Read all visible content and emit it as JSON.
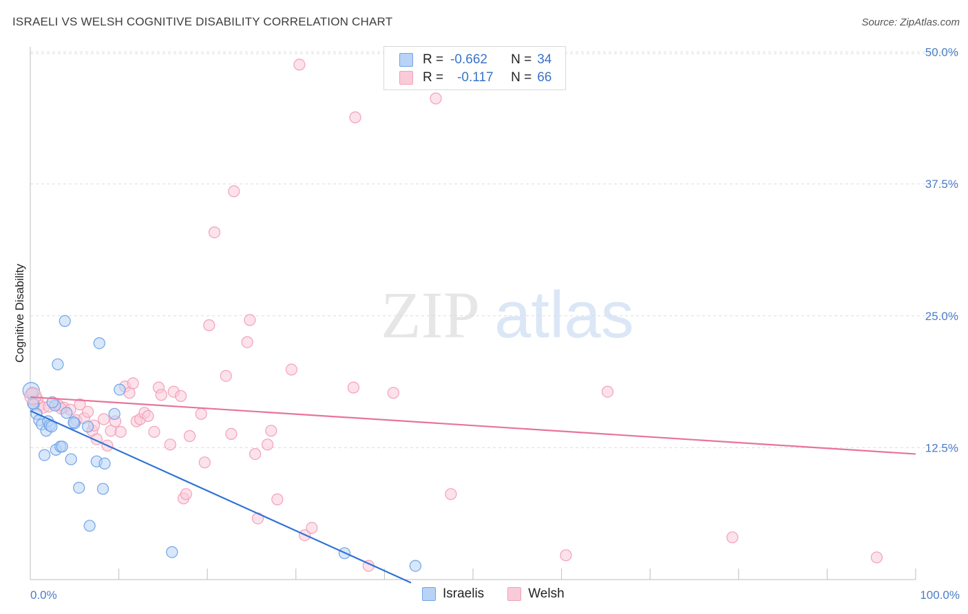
{
  "title": "ISRAELI VS WELSH COGNITIVE DISABILITY CORRELATION CHART",
  "source": "Source: ZipAtlas.com",
  "watermark": {
    "zip": "ZIP",
    "atlas": "atlas"
  },
  "legend": {
    "r_label": "R =",
    "n_label": "N =",
    "rows": [
      {
        "r": "-0.662",
        "n": "34",
        "swatch_color": "#6fa3e8"
      },
      {
        "r": "-0.117",
        "n": "66",
        "swatch_color": "#f2a0b8"
      }
    ]
  },
  "bottom_legend": [
    "Israelis",
    "Welsh"
  ],
  "colors": {
    "israelis_fill": "#b8d3f5",
    "israelis_stroke": "#6fa3e8",
    "israelis_line": "#2f72d6",
    "welsh_fill": "#f9cbd8",
    "welsh_stroke": "#f2a0b8",
    "welsh_line": "#e8739a",
    "tick_text": "#4a7cc7",
    "grid": "#dcdcdc"
  },
  "chart_data": {
    "type": "scatter",
    "title": "ISRAELI VS WELSH COGNITIVE DISABILITY CORRELATION CHART",
    "xlabel": "",
    "ylabel": "Cognitive Disability",
    "xlim": [
      0,
      100
    ],
    "ylim": [
      0,
      52
    ],
    "x_tick_labels": [
      "0.0%",
      "100.0%"
    ],
    "y_ticks": [
      12.5,
      25.0,
      37.5,
      50.0
    ],
    "y_tick_labels": [
      "12.5%",
      "25.0%",
      "37.5%",
      "50.0%"
    ],
    "grid": true,
    "legend_position": "top-center",
    "series": [
      {
        "name": "Israelis",
        "r": -0.662,
        "n": 34,
        "trend": {
          "x": [
            0,
            43
          ],
          "y": [
            16.0,
            -0.3
          ]
        },
        "points": [
          [
            0.2,
            17.7
          ],
          [
            0.4,
            16.6
          ],
          [
            0.7,
            15.7
          ],
          [
            1.0,
            15.1
          ],
          [
            1.3,
            14.7
          ],
          [
            1.6,
            11.8
          ],
          [
            1.8,
            14.1
          ],
          [
            2.0,
            15.0
          ],
          [
            2.2,
            14.6
          ],
          [
            2.4,
            14.5
          ],
          [
            2.8,
            16.5
          ],
          [
            2.9,
            12.3
          ],
          [
            3.1,
            20.4
          ],
          [
            3.4,
            12.6
          ],
          [
            3.6,
            12.6
          ],
          [
            3.9,
            24.5
          ],
          [
            4.1,
            15.8
          ],
          [
            4.6,
            11.4
          ],
          [
            5.0,
            14.8
          ],
          [
            5.5,
            8.7
          ],
          [
            6.5,
            14.5
          ],
          [
            6.7,
            5.1
          ],
          [
            7.5,
            11.2
          ],
          [
            7.8,
            22.4
          ],
          [
            8.2,
            8.6
          ],
          [
            8.4,
            11.0
          ],
          [
            9.5,
            15.7
          ],
          [
            10.1,
            18.0
          ],
          [
            16.0,
            2.6
          ],
          [
            35.5,
            2.5
          ],
          [
            43.5,
            1.3
          ],
          [
            0.3,
            16.7
          ],
          [
            4.9,
            14.9
          ],
          [
            2.5,
            16.8
          ]
        ]
      },
      {
        "name": "Welsh",
        "r": -0.117,
        "n": 66,
        "trend": {
          "x": [
            0,
            100
          ],
          "y": [
            17.3,
            11.9
          ]
        },
        "points": [
          [
            0.2,
            17.6
          ],
          [
            0.4,
            16.9
          ],
          [
            0.8,
            17.1
          ],
          [
            1.1,
            16.5
          ],
          [
            1.5,
            16.3
          ],
          [
            2.1,
            16.4
          ],
          [
            3.2,
            16.5
          ],
          [
            3.8,
            16.3
          ],
          [
            4.5,
            16.1
          ],
          [
            5.2,
            15.1
          ],
          [
            5.6,
            16.6
          ],
          [
            6.1,
            15.3
          ],
          [
            6.5,
            15.9
          ],
          [
            7.0,
            14.1
          ],
          [
            7.2,
            14.6
          ],
          [
            7.5,
            13.3
          ],
          [
            8.3,
            15.2
          ],
          [
            8.7,
            12.7
          ],
          [
            9.1,
            14.1
          ],
          [
            9.6,
            15.0
          ],
          [
            10.2,
            14.0
          ],
          [
            10.7,
            18.3
          ],
          [
            11.2,
            17.7
          ],
          [
            11.6,
            18.6
          ],
          [
            12.0,
            15.0
          ],
          [
            12.4,
            15.2
          ],
          [
            12.9,
            15.8
          ],
          [
            13.3,
            15.5
          ],
          [
            14.0,
            14.0
          ],
          [
            14.5,
            18.2
          ],
          [
            14.8,
            17.5
          ],
          [
            15.8,
            12.8
          ],
          [
            16.2,
            17.8
          ],
          [
            17.0,
            17.4
          ],
          [
            17.3,
            7.7
          ],
          [
            17.6,
            8.1
          ],
          [
            18.0,
            13.6
          ],
          [
            19.3,
            15.7
          ],
          [
            19.7,
            11.1
          ],
          [
            20.2,
            24.1
          ],
          [
            20.8,
            32.9
          ],
          [
            22.1,
            19.3
          ],
          [
            22.7,
            13.8
          ],
          [
            23.0,
            36.8
          ],
          [
            24.5,
            22.5
          ],
          [
            24.8,
            24.6
          ],
          [
            25.4,
            11.9
          ],
          [
            25.7,
            5.8
          ],
          [
            26.8,
            12.8
          ],
          [
            27.2,
            14.1
          ],
          [
            27.9,
            7.6
          ],
          [
            29.5,
            19.9
          ],
          [
            30.4,
            48.8
          ],
          [
            31.0,
            4.2
          ],
          [
            31.8,
            4.9
          ],
          [
            36.5,
            18.2
          ],
          [
            36.7,
            43.8
          ],
          [
            38.2,
            1.3
          ],
          [
            41.0,
            17.7
          ],
          [
            45.8,
            45.6
          ],
          [
            47.5,
            8.1
          ],
          [
            60.5,
            2.3
          ],
          [
            65.2,
            17.8
          ],
          [
            79.3,
            4.0
          ],
          [
            95.6,
            2.1
          ],
          [
            3.5,
            16.2
          ]
        ]
      }
    ]
  }
}
